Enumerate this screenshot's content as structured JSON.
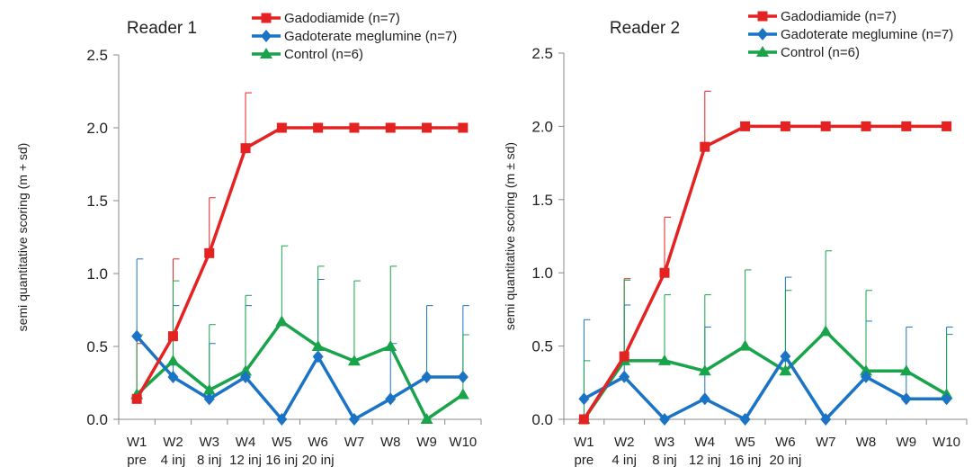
{
  "chart_data": [
    {
      "type": "line",
      "title": "Reader 1",
      "ylabel": "semi quantitative scoring (m + sd)",
      "ylim": [
        0,
        2.5
      ],
      "yticks": [
        "0.0",
        "0.5",
        "1.0",
        "1.5",
        "2.0",
        "2.5"
      ],
      "categories": [
        "W1",
        "W2",
        "W3",
        "W4",
        "W5",
        "W6",
        "W7",
        "W8",
        "W9",
        "W10"
      ],
      "sublabels": [
        "pre",
        "4 inj",
        "8 inj",
        "12 inj",
        "16 inj",
        "20 inj",
        "",
        "",
        "",
        ""
      ],
      "legend_position": "top-right",
      "series": [
        {
          "name": "Gadodiamide (n=7)",
          "color": "#e52222",
          "marker": "square",
          "values": [
            0.14,
            0.57,
            1.14,
            1.86,
            2.0,
            2.0,
            2.0,
            2.0,
            2.0,
            2.0
          ],
          "sd": [
            0.38,
            0.53,
            0.38,
            0.38,
            0,
            0,
            0,
            0,
            0,
            0
          ]
        },
        {
          "name": "Gadoterate meglumine (n=7)",
          "color": "#1a73c4",
          "marker": "diamond",
          "values": [
            0.57,
            0.29,
            0.14,
            0.29,
            0.0,
            0.43,
            0.0,
            0.14,
            0.29,
            0.29
          ],
          "sd": [
            0.53,
            0.49,
            0.38,
            0.49,
            0,
            0.53,
            0,
            0.38,
            0.49,
            0.49
          ]
        },
        {
          "name": "Control (n=6)",
          "color": "#19a34a",
          "marker": "triangle",
          "values": [
            0.17,
            0.4,
            0.2,
            0.33,
            0.67,
            0.5,
            0.4,
            0.5,
            0.0,
            0.17
          ],
          "sd": [
            0.41,
            0.55,
            0.45,
            0.52,
            0.52,
            0.55,
            0.55,
            0.55,
            0,
            0.41
          ]
        }
      ]
    },
    {
      "type": "line",
      "title": "Reader 2",
      "ylabel": "semi quantitative scoring (m ± sd)",
      "ylim": [
        0,
        2.5
      ],
      "yticks": [
        "0.0",
        "0.5",
        "1.0",
        "1.5",
        "2.0",
        "2.5"
      ],
      "categories": [
        "W1",
        "W2",
        "W3",
        "W4",
        "W5",
        "W6",
        "W7",
        "W8",
        "W9",
        "W10"
      ],
      "sublabels": [
        "pre",
        "4 inj",
        "8 inj",
        "12 inj",
        "16 inj",
        "20 inj",
        "",
        "",
        "",
        ""
      ],
      "legend_position": "top-right",
      "series": [
        {
          "name": "Gadodiamide (n=7)",
          "color": "#e52222",
          "marker": "square",
          "values": [
            0.0,
            0.43,
            1.0,
            1.86,
            2.0,
            2.0,
            2.0,
            2.0,
            2.0,
            2.0
          ],
          "sd": [
            0,
            0.53,
            0.38,
            0.38,
            0,
            0,
            0,
            0,
            0,
            0
          ]
        },
        {
          "name": "Gadoterate meglumine (n=7)",
          "color": "#1a73c4",
          "marker": "diamond",
          "values": [
            0.14,
            0.29,
            0.0,
            0.14,
            0.0,
            0.43,
            0.0,
            0.29,
            0.14,
            0.14
          ],
          "sd": [
            0.54,
            0.49,
            0,
            0.49,
            0,
            0.54,
            0,
            0.38,
            0.49,
            0.49
          ]
        },
        {
          "name": "Control (n=6)",
          "color": "#19a34a",
          "marker": "triangle",
          "values": [
            0.0,
            0.4,
            0.4,
            0.33,
            0.5,
            0.33,
            0.6,
            0.33,
            0.33,
            0.17
          ],
          "sd": [
            0.4,
            0.55,
            0.45,
            0.52,
            0.52,
            0.55,
            0.55,
            0.55,
            0,
            0.41
          ]
        }
      ]
    }
  ]
}
